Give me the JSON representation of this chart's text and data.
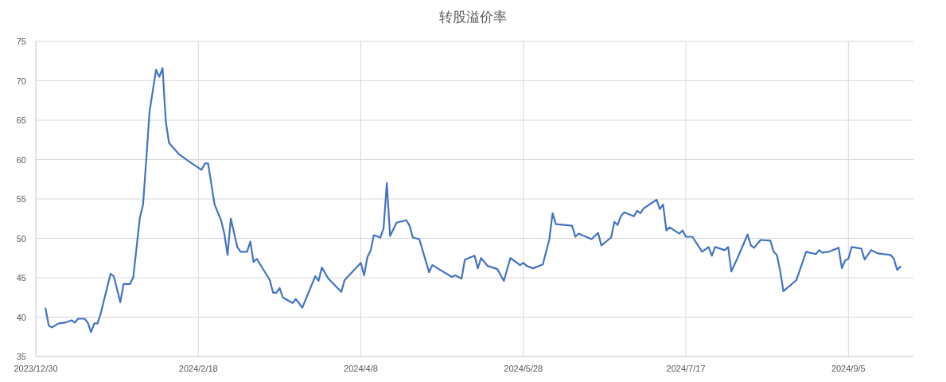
{
  "chart_data": {
    "type": "line",
    "title": "转股溢价率",
    "xlim": [
      "2023-12-30",
      "2024-09-25"
    ],
    "xticks": [
      {
        "value": "2023-12-30",
        "label": "2023/12/30"
      },
      {
        "value": "2024-02-18",
        "label": "2024/2/18"
      },
      {
        "value": "2024-04-08",
        "label": "2024/4/8"
      },
      {
        "value": "2024-05-28",
        "label": "2024/5/28"
      },
      {
        "value": "2024-07-17",
        "label": "2024/7/17"
      },
      {
        "value": "2024-09-05",
        "label": "2024/9/5"
      }
    ],
    "ylim": [
      35,
      75
    ],
    "yticks": [
      35,
      40,
      45,
      50,
      55,
      60,
      65,
      70,
      75
    ],
    "grid": true,
    "marker": "none",
    "line_style": "solid",
    "x": [
      "2024-01-02",
      "2024-01-03",
      "2024-01-04",
      "2024-01-06",
      "2024-01-08",
      "2024-01-10",
      "2024-01-11",
      "2024-01-12",
      "2024-01-14",
      "2024-01-15",
      "2024-01-16",
      "2024-01-17",
      "2024-01-18",
      "2024-01-19",
      "2024-01-22",
      "2024-01-23",
      "2024-01-25",
      "2024-01-26",
      "2024-01-28",
      "2024-01-29",
      "2024-01-31",
      "2024-02-01",
      "2024-02-02",
      "2024-02-03",
      "2024-02-05",
      "2024-02-06",
      "2024-02-07",
      "2024-02-08",
      "2024-02-09",
      "2024-02-12",
      "2024-02-16",
      "2024-02-19",
      "2024-02-20",
      "2024-02-21",
      "2024-02-23",
      "2024-02-25",
      "2024-02-26",
      "2024-02-27",
      "2024-02-28",
      "2024-03-01",
      "2024-03-02",
      "2024-03-04",
      "2024-03-05",
      "2024-03-06",
      "2024-03-07",
      "2024-03-11",
      "2024-03-12",
      "2024-03-13",
      "2024-03-14",
      "2024-03-15",
      "2024-03-18",
      "2024-03-19",
      "2024-03-21",
      "2024-03-25",
      "2024-03-26",
      "2024-03-27",
      "2024-03-29",
      "2024-04-02",
      "2024-04-03",
      "2024-04-08",
      "2024-04-09",
      "2024-04-10",
      "2024-04-11",
      "2024-04-12",
      "2024-04-14",
      "2024-04-15",
      "2024-04-16",
      "2024-04-17",
      "2024-04-19",
      "2024-04-22",
      "2024-04-23",
      "2024-04-24",
      "2024-04-26",
      "2024-04-29",
      "2024-04-30",
      "2024-05-06",
      "2024-05-07",
      "2024-05-09",
      "2024-05-10",
      "2024-05-13",
      "2024-05-14",
      "2024-05-15",
      "2024-05-17",
      "2024-05-20",
      "2024-05-22",
      "2024-05-24",
      "2024-05-27",
      "2024-05-28",
      "2024-05-29",
      "2024-05-31",
      "2024-06-03",
      "2024-06-05",
      "2024-06-06",
      "2024-06-07",
      "2024-06-12",
      "2024-06-13",
      "2024-06-14",
      "2024-06-18",
      "2024-06-20",
      "2024-06-21",
      "2024-06-24",
      "2024-06-25",
      "2024-06-26",
      "2024-06-27",
      "2024-06-28",
      "2024-07-01",
      "2024-07-02",
      "2024-07-03",
      "2024-07-04",
      "2024-07-08",
      "2024-07-09",
      "2024-07-10",
      "2024-07-11",
      "2024-07-12",
      "2024-07-15",
      "2024-07-16",
      "2024-07-17",
      "2024-07-19",
      "2024-07-22",
      "2024-07-24",
      "2024-07-25",
      "2024-07-26",
      "2024-07-29",
      "2024-07-30",
      "2024-07-31",
      "2024-08-02",
      "2024-08-05",
      "2024-08-06",
      "2024-08-07",
      "2024-08-09",
      "2024-08-12",
      "2024-08-13",
      "2024-08-14",
      "2024-08-15",
      "2024-08-16",
      "2024-08-20",
      "2024-08-21",
      "2024-08-23",
      "2024-08-26",
      "2024-08-27",
      "2024-08-28",
      "2024-08-30",
      "2024-09-02",
      "2024-09-03",
      "2024-09-04",
      "2024-09-05",
      "2024-09-06",
      "2024-09-09",
      "2024-09-10",
      "2024-09-12",
      "2024-09-14",
      "2024-09-18",
      "2024-09-19",
      "2024-09-20",
      "2024-09-21"
    ],
    "series": [
      {
        "color": "#4472c4",
        "values": [
          41.1,
          38.9,
          38.7,
          39.2,
          39.3,
          39.6,
          39.3,
          39.8,
          39.8,
          39.3,
          38.1,
          39.2,
          39.2,
          40.5,
          45.5,
          45.2,
          41.9,
          44.2,
          44.2,
          45.1,
          52.6,
          54.3,
          60.1,
          66.1,
          71.4,
          70.5,
          71.6,
          64.8,
          62.1,
          60.7,
          59.5,
          58.7,
          59.5,
          59.5,
          54.3,
          52.3,
          50.6,
          47.9,
          52.5,
          48.9,
          48.3,
          48.3,
          49.6,
          47.0,
          47.4,
          44.7,
          43.1,
          43.1,
          43.7,
          42.5,
          41.8,
          42.3,
          41.2,
          45.2,
          44.6,
          46.3,
          44.9,
          43.2,
          44.7,
          46.9,
          45.3,
          47.6,
          48.4,
          50.4,
          50.1,
          51.3,
          57.0,
          50.3,
          52.0,
          52.3,
          51.6,
          50.1,
          49.9,
          45.7,
          46.6,
          45.1,
          45.3,
          44.9,
          47.3,
          47.8,
          46.2,
          47.5,
          46.5,
          46.1,
          44.6,
          47.5,
          46.6,
          46.9,
          46.5,
          46.2,
          46.7,
          49.9,
          53.2,
          51.8,
          51.6,
          50.2,
          50.6,
          49.9,
          50.7,
          49.1,
          50.1,
          52.1,
          51.7,
          52.8,
          53.3,
          52.8,
          53.5,
          53.2,
          53.8,
          54.9,
          53.7,
          54.3,
          51.0,
          51.4,
          50.6,
          51.0,
          50.2,
          50.2,
          48.3,
          48.9,
          47.8,
          48.9,
          48.5,
          48.9,
          45.8,
          47.6,
          50.5,
          49.1,
          48.8,
          49.8,
          49.7,
          48.3,
          47.9,
          45.9,
          43.3,
          44.7,
          45.9,
          48.3,
          48.0,
          48.5,
          48.2,
          48.3,
          48.8,
          46.2,
          47.2,
          47.4,
          48.9,
          48.7,
          47.3,
          48.5,
          48.1,
          47.9,
          47.4,
          46.0,
          46.4
        ]
      }
    ]
  }
}
